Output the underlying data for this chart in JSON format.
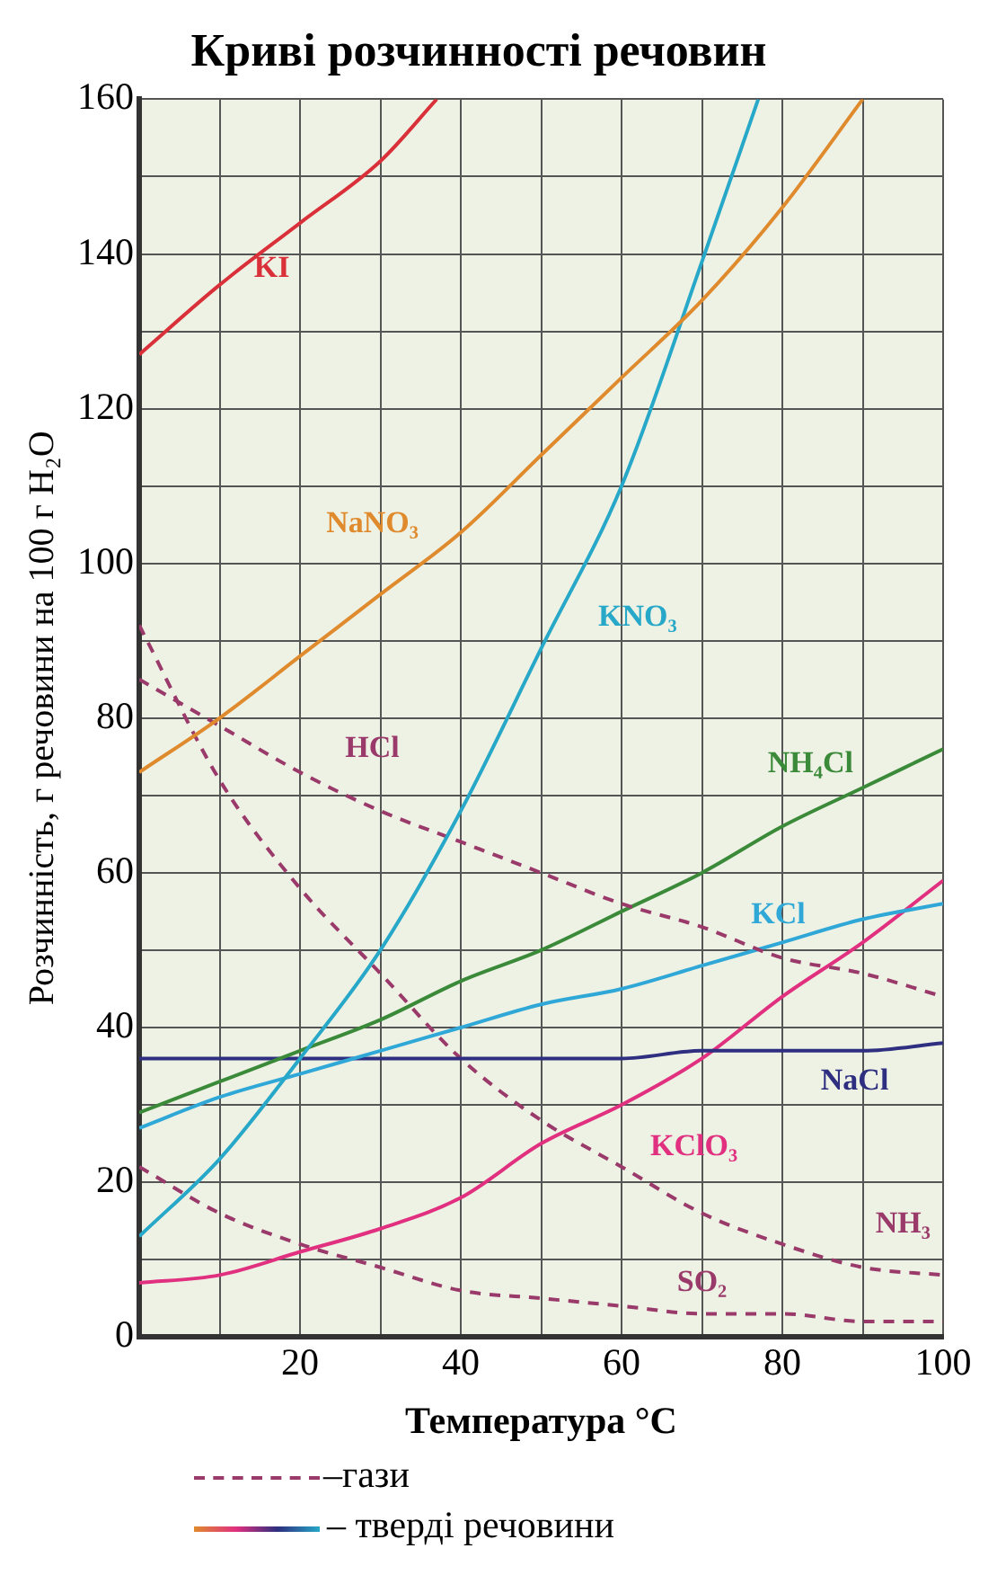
{
  "chart_data": {
    "type": "line",
    "title": "Криві розчинності речовин",
    "xlabel": "Температура °C",
    "ylabel": "Розчинність, г речовини на 100 г H₂O",
    "x": [
      0,
      10,
      20,
      30,
      40,
      50,
      60,
      70,
      80,
      90,
      100
    ],
    "series": [
      {
        "name": "KI",
        "color": "#d9303a",
        "x": [
          0,
          10,
          20,
          30,
          37
        ],
        "values": [
          127,
          136,
          144,
          152,
          160
        ]
      },
      {
        "name": "NaNO₃",
        "color": "#e08a2e",
        "x": [
          0,
          10,
          20,
          30,
          40,
          50,
          60,
          70,
          80,
          90
        ],
        "values": [
          73,
          80,
          88,
          96,
          104,
          114,
          124,
          134,
          146,
          160
        ]
      },
      {
        "name": "KNO₃",
        "color": "#27a8c8",
        "x": [
          0,
          10,
          20,
          30,
          40,
          50,
          60,
          70,
          77
        ],
        "values": [
          13,
          23,
          36,
          50,
          68,
          89,
          110,
          139,
          160
        ]
      },
      {
        "name": "HCl",
        "color": "#9a3a6a",
        "line_style": "dashed",
        "values": [
          85,
          79,
          73,
          68,
          64,
          60,
          56,
          53,
          49,
          47,
          44
        ]
      },
      {
        "name": "NH₄Cl",
        "color": "#3a8a3a",
        "values": [
          29,
          33,
          37,
          41,
          46,
          50,
          55,
          60,
          66,
          71,
          76
        ]
      },
      {
        "name": "KCl",
        "color": "#2fa8d8",
        "values": [
          27,
          31,
          34,
          37,
          40,
          43,
          45,
          48,
          51,
          54,
          56
        ]
      },
      {
        "name": "NaCl",
        "color": "#2e2f80",
        "values": [
          36,
          36,
          36,
          36,
          36,
          36,
          36,
          37,
          37,
          37,
          38
        ]
      },
      {
        "name": "KClO₃",
        "color": "#e0307f",
        "values": [
          7,
          8,
          11,
          14,
          18,
          25,
          30,
          36,
          44,
          51,
          59
        ]
      },
      {
        "name": "NH₃",
        "color": "#9a3a6a",
        "line_style": "dashed",
        "values": [
          92,
          72,
          58,
          47,
          36,
          28,
          22,
          16,
          12,
          9,
          8
        ]
      },
      {
        "name": "SO₂",
        "color": "#9a3a6a",
        "line_style": "dashed",
        "values": [
          22,
          16,
          12,
          9,
          6,
          5,
          4,
          3,
          3,
          2,
          2
        ]
      }
    ],
    "xlim": [
      0,
      100
    ],
    "xticks": [
      {
        "value": 0,
        "label": null
      },
      {
        "value": 10,
        "label": null
      },
      20,
      {
        "value": 30,
        "label": null
      },
      40,
      {
        "value": 50,
        "label": null
      },
      60,
      {
        "value": 70,
        "label": null
      },
      80,
      {
        "value": 90,
        "label": null
      },
      100
    ],
    "ylim": [
      0,
      160
    ],
    "yticks": [
      0,
      {
        "value": 10,
        "label": null
      },
      20,
      {
        "value": 30,
        "label": null
      },
      40,
      {
        "value": 50,
        "label": null
      },
      60,
      {
        "value": 70,
        "label": null
      },
      80,
      {
        "value": 90,
        "label": null
      },
      100,
      {
        "value": 110,
        "label": null
      },
      120,
      {
        "value": 130,
        "label": null
      },
      140,
      {
        "value": 150,
        "label": null
      },
      160
    ],
    "grid": true,
    "legend": false,
    "marker": "none",
    "annotations": [
      "–гази",
      "– тверді речовини"
    ]
  }
}
